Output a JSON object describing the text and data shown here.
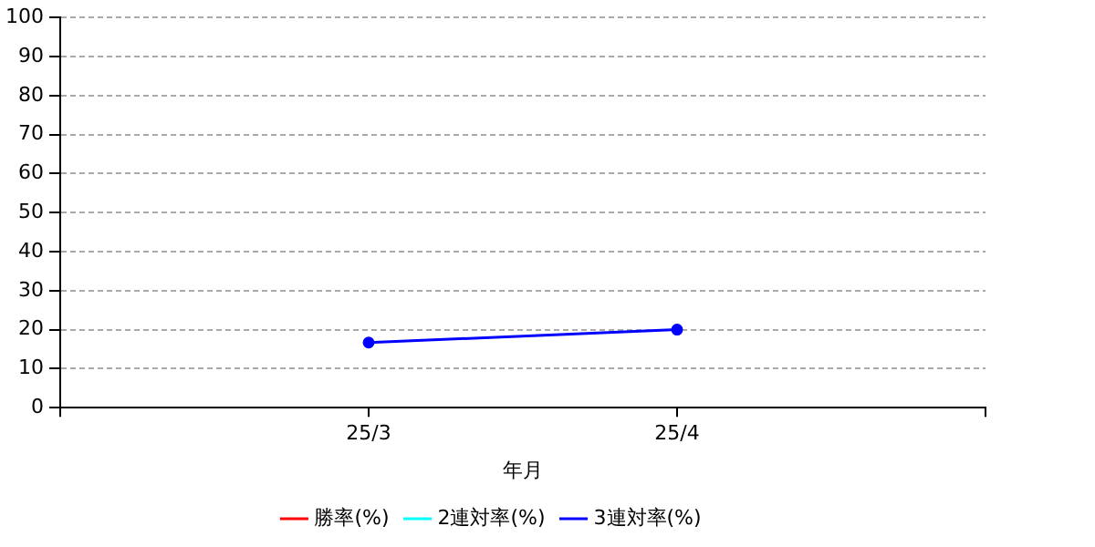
{
  "chart_data": {
    "type": "line",
    "xlabel": "年月",
    "categories": [
      "25/3",
      "25/4"
    ],
    "series": [
      {
        "name": "勝率(%)",
        "color": "#ff0000",
        "values": [
          null,
          null
        ]
      },
      {
        "name": "2連対率(%)",
        "color": "#00ffff",
        "values": [
          null,
          null
        ]
      },
      {
        "name": "3連対率(%)",
        "color": "#0000ff",
        "values": [
          16.7,
          20
        ]
      }
    ],
    "ylim": [
      0,
      100
    ],
    "yticks": [
      0,
      10,
      20,
      30,
      40,
      50,
      60,
      70,
      80,
      90,
      100
    ],
    "grid": "y",
    "legend": "bottom",
    "marker": "circle",
    "line_style": "solid"
  }
}
